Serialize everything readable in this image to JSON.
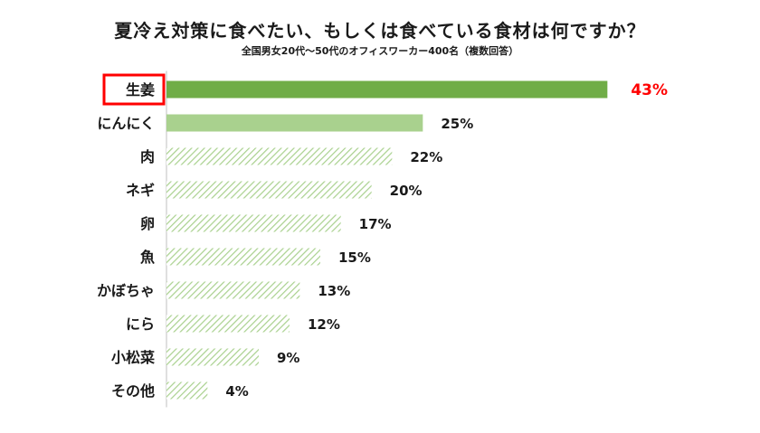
{
  "chart_data": {
    "type": "bar",
    "orientation": "horizontal",
    "title": "夏冷え対策に食べたい、もしくは食べている食材は何ですか？",
    "subtitle": "全国男女20代～50代のオフィスワーカー400名（複数回答）",
    "categories": [
      "生姜",
      "にんにく",
      "肉",
      "ネギ",
      "卵",
      "魚",
      "かぼちゃ",
      "にら",
      "小松菜",
      "その他"
    ],
    "values": [
      43,
      25,
      22,
      20,
      17,
      15,
      13,
      12,
      9,
      4
    ],
    "value_labels": [
      "43%",
      "25%",
      "22%",
      "20%",
      "17%",
      "15%",
      "13%",
      "12%",
      "9%",
      "4%"
    ],
    "xlim": [
      0,
      45
    ],
    "highlight_index": 0,
    "grid": false,
    "colors": {
      "top_bar": "#70ad47",
      "second_bar": "#a9d18e",
      "hatch": "#a9d18e",
      "highlight_label": "#ff0000",
      "highlight_box": "#ff0000",
      "text": "#1a1a1a"
    }
  }
}
